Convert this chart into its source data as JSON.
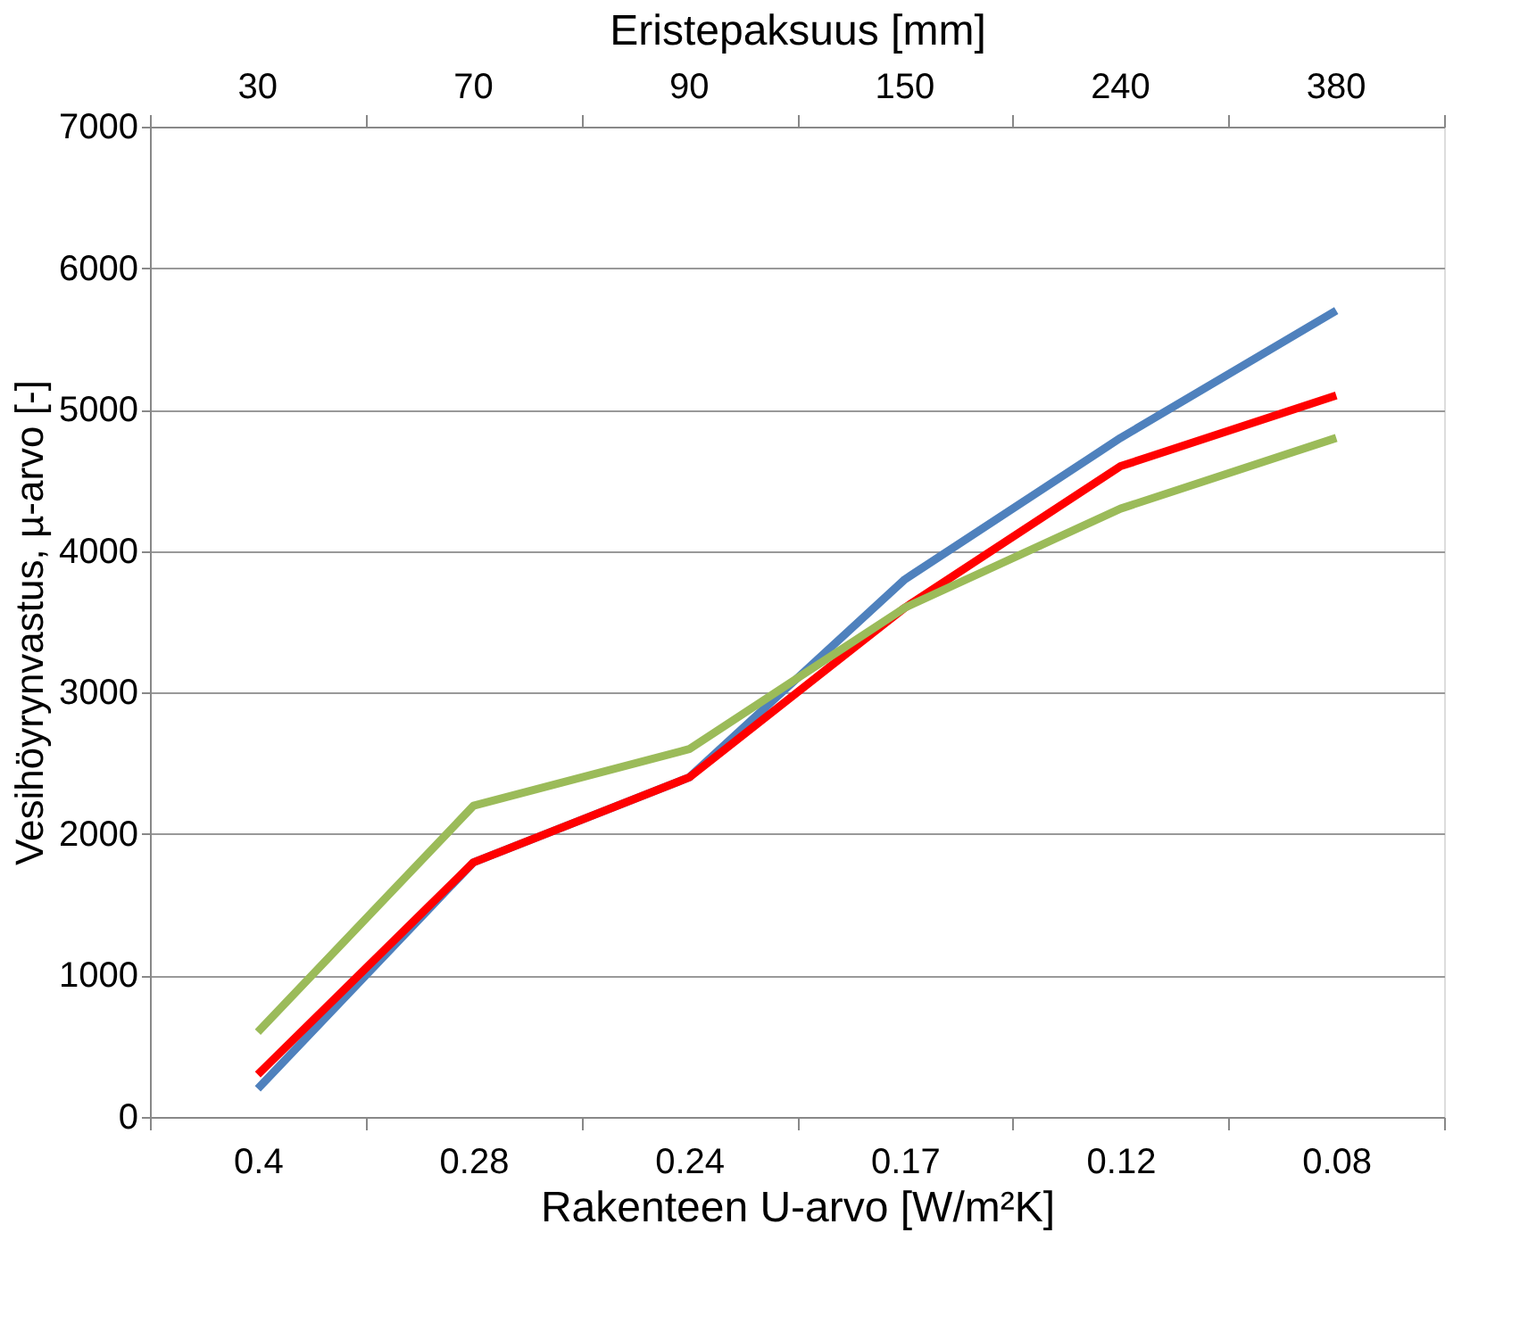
{
  "chart_data": {
    "type": "line",
    "xlabel": "Rakenteen U-arvo [W/m²K]",
    "ylabel": "Vesihöyrynvastus, µ-arvo [-]",
    "x2label": "Eristepaksuus [mm]",
    "categories": [
      "0.4",
      "0.28",
      "0.24",
      "0.17",
      "0.12",
      "0.08"
    ],
    "annotations": [
      "30",
      "70",
      "90",
      "150",
      "240",
      "380"
    ],
    "series": [
      {
        "color": "#4f81bd",
        "values": [
          200,
          1800,
          2400,
          3800,
          4800,
          5700
        ]
      },
      {
        "color": "#ff0000",
        "values": [
          300,
          1800,
          2400,
          3600,
          4600,
          5100
        ]
      },
      {
        "color": "#9bbb59",
        "values": [
          600,
          2200,
          2600,
          3600,
          4300,
          4800
        ]
      }
    ],
    "ylim": [
      0,
      7000
    ],
    "yticks": [
      0,
      1000,
      2000,
      3000,
      4000,
      5000,
      6000,
      7000
    ],
    "grid": "y",
    "legend": false,
    "marker": "none",
    "line_style": "solid"
  }
}
